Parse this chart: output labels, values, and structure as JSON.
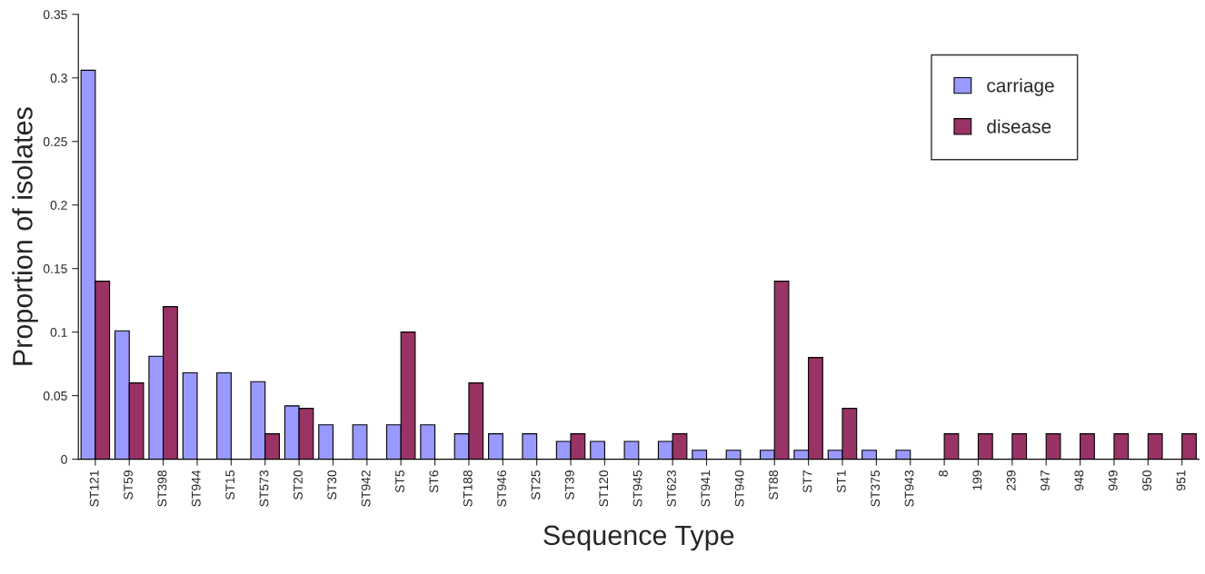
{
  "chart_data": {
    "type": "bar",
    "xlabel": "Sequence Type",
    "ylabel": "Proportion of isolates",
    "categories": [
      "ST121",
      "ST59",
      "ST398",
      "ST944",
      "ST15",
      "ST573",
      "ST20",
      "ST30",
      "ST942",
      "ST5",
      "ST6",
      "ST188",
      "ST946",
      "ST25",
      "ST39",
      "ST120",
      "ST945",
      "ST623",
      "ST941",
      "ST940",
      "ST88",
      "ST7",
      "ST1",
      "ST375",
      "ST943",
      "8",
      "199",
      "239",
      "947",
      "948",
      "949",
      "950",
      "951"
    ],
    "series": [
      {
        "name": "carriage",
        "color": "#9999ff",
        "values": [
          0.306,
          0.101,
          0.081,
          0.068,
          0.068,
          0.061,
          0.042,
          0.027,
          0.027,
          0.027,
          0.027,
          0.02,
          0.02,
          0.02,
          0.014,
          0.014,
          0.014,
          0.014,
          0.007,
          0.007,
          0.007,
          0.007,
          0.007,
          0.007,
          0.007,
          null,
          null,
          null,
          null,
          null,
          null,
          null,
          null
        ]
      },
      {
        "name": "disease",
        "color": "#993366",
        "values": [
          0.14,
          0.06,
          0.12,
          null,
          null,
          0.02,
          0.04,
          null,
          null,
          0.1,
          null,
          0.06,
          null,
          null,
          0.02,
          null,
          null,
          0.02,
          null,
          null,
          0.14,
          0.08,
          0.04,
          null,
          null,
          0.02,
          0.02,
          0.02,
          0.02,
          0.02,
          0.02,
          0.02,
          0.02
        ]
      }
    ],
    "ylim": [
      0,
      0.35
    ],
    "yticks": [
      0,
      0.05,
      0.1,
      0.15,
      0.2,
      0.25,
      0.3,
      0.35
    ],
    "grid": false,
    "legend": "top right"
  }
}
